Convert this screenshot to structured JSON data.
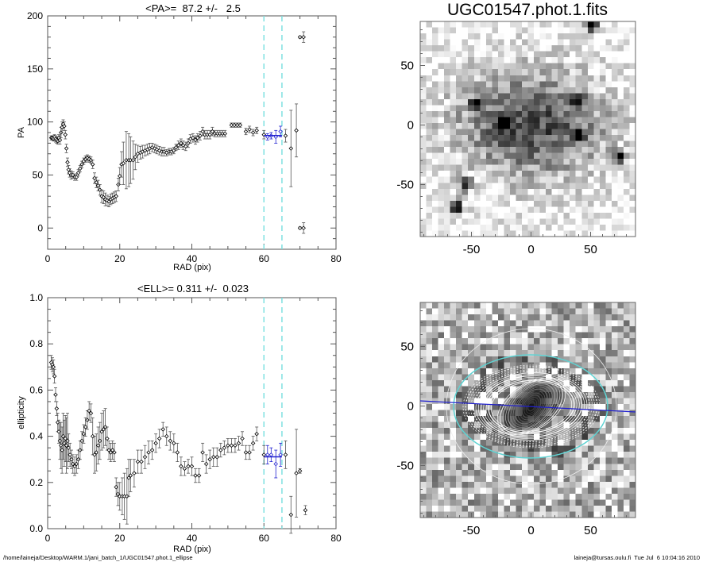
{
  "footer": {
    "path": "/home/laineja/Desktop/WARM.1/jani_batch_1/UGC01547.phot.1_ellipse",
    "user_time": "laineja@tursas.oulu.fi  Tue Jul  6 10:04:16 2010"
  },
  "colors": {
    "window_line": "#7fe0e0",
    "mean_line": "#2020d0",
    "points": "#000000",
    "errbar": "#555555"
  },
  "chart_data": [
    {
      "type": "scatter",
      "title": "<PA>=  87.2 +/-   2.5",
      "xlabel": "RAD (pix)",
      "ylabel": "PA",
      "xlim": [
        0,
        80
      ],
      "ylim": [
        -20,
        200
      ],
      "xticks": [
        "0",
        "20",
        "40",
        "60",
        "80"
      ],
      "yticks": [
        "0",
        "50",
        "100",
        "150",
        "200"
      ],
      "window": [
        60,
        65
      ],
      "mean": 87.2,
      "mean_err": 2.5,
      "points": [
        [
          1,
          85,
          2
        ],
        [
          1.3,
          85,
          2
        ],
        [
          1.6,
          84,
          2
        ],
        [
          1.9,
          86,
          2
        ],
        [
          2.2,
          84,
          3
        ],
        [
          2.5,
          83,
          3
        ],
        [
          2.8,
          82,
          3
        ],
        [
          3.1,
          85,
          3
        ],
        [
          3.4,
          83,
          4
        ],
        [
          3.7,
          90,
          5
        ],
        [
          4,
          95,
          5
        ],
        [
          4.3,
          98,
          4
        ],
        [
          4.6,
          96,
          4
        ],
        [
          4.9,
          88,
          4
        ],
        [
          5.2,
          75,
          4
        ],
        [
          5.5,
          62,
          4
        ],
        [
          5.8,
          55,
          4
        ],
        [
          6.1,
          52,
          4
        ],
        [
          6.5,
          50,
          4
        ],
        [
          7,
          50,
          3
        ],
        [
          7.5,
          48,
          3
        ],
        [
          8,
          48,
          3
        ],
        [
          8.5,
          52,
          3
        ],
        [
          9,
          56,
          3
        ],
        [
          9.5,
          60,
          3
        ],
        [
          10,
          63,
          3
        ],
        [
          10.5,
          65,
          3
        ],
        [
          11,
          66,
          3
        ],
        [
          11.5,
          65,
          3
        ],
        [
          12,
          64,
          3
        ],
        [
          12.5,
          60,
          4
        ],
        [
          13,
          47,
          5
        ],
        [
          13.5,
          43,
          5
        ],
        [
          14,
          40,
          5
        ],
        [
          14.5,
          36,
          5
        ],
        [
          15,
          30,
          6
        ],
        [
          15.5,
          29,
          6
        ],
        [
          16,
          27,
          6
        ],
        [
          16.5,
          26,
          5
        ],
        [
          17,
          25,
          5
        ],
        [
          17.5,
          27,
          5
        ],
        [
          18,
          28,
          5
        ],
        [
          18.5,
          29,
          5
        ],
        [
          19,
          30,
          5
        ],
        [
          19.6,
          41,
          6
        ],
        [
          20,
          49,
          8
        ],
        [
          20.5,
          60,
          12
        ],
        [
          21,
          61,
          20
        ],
        [
          21.8,
          64,
          27
        ],
        [
          22.5,
          64,
          25
        ],
        [
          23,
          64,
          22
        ],
        [
          23.7,
          64,
          18
        ],
        [
          24.3,
          67,
          12
        ],
        [
          25,
          70,
          8
        ],
        [
          25.7,
          71,
          6
        ],
        [
          26.3,
          72,
          6
        ],
        [
          27,
          73,
          5
        ],
        [
          27.7,
          74,
          5
        ],
        [
          28.3,
          75,
          5
        ],
        [
          29,
          76,
          4
        ],
        [
          29.7,
          75,
          4
        ],
        [
          30.3,
          74,
          4
        ],
        [
          31,
          73,
          4
        ],
        [
          31.7,
          72,
          4
        ],
        [
          32.3,
          72,
          4
        ],
        [
          33,
          71,
          3
        ],
        [
          33.7,
          72,
          3
        ],
        [
          34.3,
          72,
          3
        ],
        [
          35,
          73,
          3
        ],
        [
          35.6,
          76,
          3
        ],
        [
          36.3,
          78,
          4
        ],
        [
          37,
          80,
          4
        ],
        [
          37.6,
          78,
          4
        ],
        [
          38.3,
          77,
          4
        ],
        [
          39,
          80,
          4
        ],
        [
          39.6,
          84,
          4
        ],
        [
          40.3,
          85,
          4
        ],
        [
          41,
          83,
          4
        ],
        [
          41.6,
          85,
          4
        ],
        [
          42.3,
          87,
          4
        ],
        [
          43,
          91,
          4
        ],
        [
          43.6,
          88,
          4
        ],
        [
          44.3,
          88,
          4
        ],
        [
          45,
          88,
          4
        ],
        [
          45.7,
          91,
          4
        ],
        [
          46.4,
          89,
          3
        ],
        [
          47.1,
          89,
          3
        ],
        [
          47.8,
          89,
          3
        ],
        [
          48.5,
          89,
          3
        ],
        [
          49.2,
          89,
          3
        ],
        [
          51,
          97,
          2
        ],
        [
          51.8,
          97,
          2
        ],
        [
          52.6,
          97,
          2
        ],
        [
          53.4,
          97,
          2
        ],
        [
          55,
          91,
          3
        ],
        [
          56,
          93,
          3
        ],
        [
          57,
          90,
          3
        ],
        [
          58,
          92,
          3
        ],
        [
          60,
          88,
          4
        ],
        [
          61,
          86,
          3
        ],
        [
          62,
          87,
          3
        ],
        [
          63.3,
          86,
          6
        ],
        [
          64.6,
          91,
          5
        ],
        [
          66,
          87,
          6
        ],
        [
          67.5,
          75,
          36
        ],
        [
          69,
          92,
          25
        ],
        [
          70,
          180,
          1
        ],
        [
          71,
          180,
          5
        ],
        [
          70,
          0,
          1
        ],
        [
          71,
          0,
          5
        ]
      ]
    },
    {
      "type": "scatter",
      "title": "<ELL>= 0.311 +/-  0.023",
      "xlabel": "RAD (pix)",
      "ylabel": "ellipticity",
      "xlim": [
        0,
        80
      ],
      "ylim": [
        0,
        1
      ],
      "xticks": [
        "0",
        "20",
        "40",
        "60",
        "80"
      ],
      "yticks": [
        "0.0",
        "0.2",
        "0.4",
        "0.6",
        "0.8",
        "1.0"
      ],
      "window": [
        60,
        65
      ],
      "mean": 0.311,
      "mean_err": 0.023,
      "points": [
        [
          1,
          0.72,
          0.03
        ],
        [
          1.3,
          0.71,
          0.03
        ],
        [
          1.6,
          0.7,
          0.03
        ],
        [
          1.9,
          0.66,
          0.03
        ],
        [
          2.2,
          0.58,
          0.03
        ],
        [
          2.5,
          0.52,
          0.03
        ],
        [
          2.8,
          0.46,
          0.04
        ],
        [
          3.1,
          0.42,
          0.05
        ],
        [
          3.4,
          0.38,
          0.08
        ],
        [
          3.7,
          0.36,
          0.1
        ],
        [
          4,
          0.34,
          0.1
        ],
        [
          4.3,
          0.4,
          0.1
        ],
        [
          4.6,
          0.37,
          0.1
        ],
        [
          4.9,
          0.39,
          0.1
        ],
        [
          5.2,
          0.36,
          0.12
        ],
        [
          5.5,
          0.38,
          0.12
        ],
        [
          5.8,
          0.35,
          0.06
        ],
        [
          6.2,
          0.32,
          0.05
        ],
        [
          6.6,
          0.3,
          0.04
        ],
        [
          7,
          0.28,
          0.04
        ],
        [
          7.5,
          0.27,
          0.04
        ],
        [
          8,
          0.28,
          0.04
        ],
        [
          8.5,
          0.3,
          0.04
        ],
        [
          9,
          0.34,
          0.04
        ],
        [
          9.5,
          0.38,
          0.04
        ],
        [
          10,
          0.41,
          0.04
        ],
        [
          10.5,
          0.44,
          0.04
        ],
        [
          11,
          0.47,
          0.04
        ],
        [
          11.5,
          0.51,
          0.04
        ],
        [
          12,
          0.5,
          0.04
        ],
        [
          12.5,
          0.4,
          0.08
        ],
        [
          13,
          0.32,
          0.08
        ],
        [
          13.5,
          0.33,
          0.08
        ],
        [
          14,
          0.36,
          0.08
        ],
        [
          14.5,
          0.38,
          0.08
        ],
        [
          15,
          0.42,
          0.08
        ],
        [
          15.5,
          0.43,
          0.08
        ],
        [
          16,
          0.44,
          0.08
        ],
        [
          16.5,
          0.39,
          0.05
        ],
        [
          17,
          0.34,
          0.04
        ],
        [
          17.5,
          0.33,
          0.04
        ],
        [
          18,
          0.34,
          0.04
        ],
        [
          18.5,
          0.33,
          0.04
        ],
        [
          19,
          0.18,
          0.04
        ],
        [
          19.5,
          0.15,
          0.05
        ],
        [
          20,
          0.14,
          0.06
        ],
        [
          20.7,
          0.14,
          0.08
        ],
        [
          21.3,
          0.14,
          0.1
        ],
        [
          22,
          0.14,
          0.12
        ],
        [
          22.5,
          0.22,
          0.08
        ],
        [
          23,
          0.23,
          0.07
        ],
        [
          24,
          0.24,
          0.06
        ],
        [
          25,
          0.29,
          0.05
        ],
        [
          26,
          0.29,
          0.05
        ],
        [
          27,
          0.31,
          0.05
        ],
        [
          28,
          0.33,
          0.05
        ],
        [
          29,
          0.34,
          0.04
        ],
        [
          30,
          0.37,
          0.04
        ],
        [
          31,
          0.39,
          0.04
        ],
        [
          32,
          0.43,
          0.03
        ],
        [
          33,
          0.4,
          0.04
        ],
        [
          34,
          0.38,
          0.04
        ],
        [
          35,
          0.37,
          0.04
        ],
        [
          36,
          0.33,
          0.04
        ],
        [
          37,
          0.27,
          0.04
        ],
        [
          38,
          0.26,
          0.03
        ],
        [
          39,
          0.27,
          0.03
        ],
        [
          40,
          0.27,
          0.04
        ],
        [
          41,
          0.23,
          0.03
        ],
        [
          42,
          0.23,
          0.03
        ],
        [
          43,
          0.33,
          0.04
        ],
        [
          44,
          0.28,
          0.04
        ],
        [
          45,
          0.3,
          0.04
        ],
        [
          46,
          0.31,
          0.04
        ],
        [
          47,
          0.31,
          0.04
        ],
        [
          48,
          0.34,
          0.03
        ],
        [
          49,
          0.35,
          0.03
        ],
        [
          50,
          0.36,
          0.03
        ],
        [
          51,
          0.36,
          0.03
        ],
        [
          52,
          0.36,
          0.03
        ],
        [
          53,
          0.37,
          0.03
        ],
        [
          54,
          0.39,
          0.03
        ],
        [
          55,
          0.33,
          0.03
        ],
        [
          56,
          0.33,
          0.03
        ],
        [
          57,
          0.37,
          0.03
        ],
        [
          58,
          0.41,
          0.03
        ],
        [
          60,
          0.32,
          0.04
        ],
        [
          61,
          0.32,
          0.04
        ],
        [
          62,
          0.32,
          0.03
        ],
        [
          63.3,
          0.28,
          0.06
        ],
        [
          64.6,
          0.32,
          0.05
        ],
        [
          66,
          0.32,
          0.06
        ],
        [
          67.5,
          0.06,
          0.08
        ],
        [
          69,
          0.24,
          0.19
        ],
        [
          70,
          0.25,
          0.01
        ],
        [
          71.5,
          0.08,
          0.02
        ]
      ]
    }
  ],
  "images": [
    {
      "title": "UGC01547.phot.1.fits",
      "xticks": [
        "-50",
        "0",
        "50"
      ],
      "yticks": [
        "-50",
        "0",
        "50"
      ]
    },
    {
      "title": "",
      "xticks": [
        "-50",
        "0",
        "50"
      ],
      "yticks": [
        "-50",
        "0",
        "50"
      ]
    }
  ]
}
